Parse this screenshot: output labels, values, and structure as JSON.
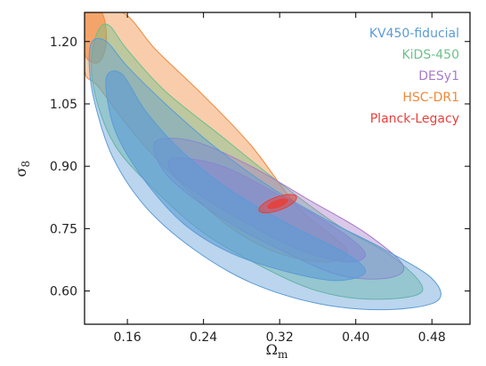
{
  "chart_data": {
    "type": "contour",
    "xlabel": "Ω",
    "xlabel_sub": "m",
    "ylabel": "σ",
    "ylabel_sub": "8",
    "xlim": [
      0.115,
      0.52
    ],
    "ylim": [
      0.52,
      1.27
    ],
    "xticks": [
      0.16,
      0.24,
      0.32,
      0.4,
      0.48
    ],
    "xtick_labels": [
      "0.16",
      "0.24",
      "0.32",
      "0.40",
      "0.48"
    ],
    "yticks": [
      0.6,
      0.75,
      0.9,
      1.05,
      1.2
    ],
    "ytick_labels": [
      "0.60",
      "0.75",
      "0.90",
      "1.05",
      "1.20"
    ],
    "grid": false,
    "legend_position": "top-right",
    "colors": {
      "KV450-fiducial": "#5b9bd5",
      "KiDS-450": "#6cc08b",
      "DESy1": "#a77bca",
      "HSC-DR1": "#f0883a",
      "Planck-Legacy": "#e8403a"
    },
    "series": [
      {
        "name": "HSC-DR1",
        "color": "#f0883a",
        "contours": [
          {
            "level": "95%",
            "points": [
              [
                0.115,
                1.27
              ],
              [
                0.155,
                1.27
              ],
              [
                0.19,
                1.18
              ],
              [
                0.24,
                1.07
              ],
              [
                0.29,
                0.95
              ],
              [
                0.34,
                0.8
              ],
              [
                0.39,
                0.7
              ],
              [
                0.37,
                0.67
              ],
              [
                0.32,
                0.69
              ],
              [
                0.27,
                0.75
              ],
              [
                0.22,
                0.85
              ],
              [
                0.17,
                0.97
              ],
              [
                0.13,
                1.09
              ],
              [
                0.115,
                1.13
              ]
            ]
          },
          {
            "level": "68%",
            "points": [
              [
                0.115,
                1.27
              ],
              [
                0.133,
                1.27
              ],
              [
                0.138,
                1.2
              ],
              [
                0.13,
                1.15
              ],
              [
                0.115,
                1.17
              ]
            ]
          }
        ]
      },
      {
        "name": "KiDS-450",
        "color": "#6cc08b",
        "contours": [
          {
            "level": "95%",
            "points": [
              [
                0.128,
                1.22
              ],
              [
                0.14,
                1.24
              ],
              [
                0.16,
                1.18
              ],
              [
                0.2,
                1.08
              ],
              [
                0.26,
                0.97
              ],
              [
                0.32,
                0.86
              ],
              [
                0.38,
                0.76
              ],
              [
                0.44,
                0.68
              ],
              [
                0.47,
                0.6
              ],
              [
                0.42,
                0.58
              ],
              [
                0.36,
                0.6
              ],
              [
                0.3,
                0.66
              ],
              [
                0.24,
                0.74
              ],
              [
                0.19,
                0.84
              ],
              [
                0.15,
                0.94
              ],
              [
                0.13,
                1.04
              ],
              [
                0.122,
                1.14
              ]
            ]
          }
        ]
      },
      {
        "name": "DESy1",
        "color": "#a77bca",
        "contours": [
          {
            "level": "95%",
            "points": [
              [
                0.19,
                0.96
              ],
              [
                0.23,
                0.96
              ],
              [
                0.29,
                0.9
              ],
              [
                0.35,
                0.82
              ],
              [
                0.41,
                0.74
              ],
              [
                0.45,
                0.66
              ],
              [
                0.43,
                0.63
              ],
              [
                0.38,
                0.64
              ],
              [
                0.32,
                0.7
              ],
              [
                0.27,
                0.76
              ],
              [
                0.22,
                0.84
              ],
              [
                0.195,
                0.9
              ]
            ]
          },
          {
            "level": "68%",
            "points": [
              [
                0.21,
                0.92
              ],
              [
                0.26,
                0.9
              ],
              [
                0.32,
                0.83
              ],
              [
                0.38,
                0.75
              ],
              [
                0.41,
                0.69
              ],
              [
                0.39,
                0.67
              ],
              [
                0.34,
                0.7
              ],
              [
                0.28,
                0.77
              ],
              [
                0.23,
                0.84
              ],
              [
                0.205,
                0.89
              ]
            ]
          }
        ]
      },
      {
        "name": "KV450-fiducial",
        "color": "#5b9bd5",
        "contours": [
          {
            "level": "95%",
            "points": [
              [
                0.123,
                1.2
              ],
              [
                0.138,
                1.2
              ],
              [
                0.16,
                1.14
              ],
              [
                0.2,
                1.05
              ],
              [
                0.25,
                0.95
              ],
              [
                0.31,
                0.85
              ],
              [
                0.37,
                0.77
              ],
              [
                0.43,
                0.7
              ],
              [
                0.48,
                0.63
              ],
              [
                0.485,
                0.575
              ],
              [
                0.43,
                0.555
              ],
              [
                0.36,
                0.57
              ],
              [
                0.29,
                0.62
              ],
              [
                0.23,
                0.7
              ],
              [
                0.18,
                0.8
              ],
              [
                0.145,
                0.92
              ],
              [
                0.126,
                1.05
              ],
              [
                0.12,
                1.14
              ]
            ]
          },
          {
            "level": "68%",
            "points": [
              [
                0.139,
                1.12
              ],
              [
                0.155,
                1.12
              ],
              [
                0.18,
                1.03
              ],
              [
                0.22,
                0.93
              ],
              [
                0.27,
                0.84
              ],
              [
                0.33,
                0.76
              ],
              [
                0.39,
                0.69
              ],
              [
                0.41,
                0.645
              ],
              [
                0.38,
                0.625
              ],
              [
                0.33,
                0.645
              ],
              [
                0.27,
                0.69
              ],
              [
                0.22,
                0.76
              ],
              [
                0.18,
                0.86
              ],
              [
                0.15,
                0.97
              ],
              [
                0.139,
                1.06
              ]
            ]
          }
        ]
      },
      {
        "name": "Planck-Legacy",
        "color": "#e8403a",
        "contours": [
          {
            "level": "95%",
            "ellipse": {
              "cx": 0.318,
              "cy": 0.81,
              "rx": 0.021,
              "ry": 0.016,
              "angle": -20
            }
          },
          {
            "level": "68%",
            "ellipse": {
              "cx": 0.318,
              "cy": 0.81,
              "rx": 0.011,
              "ry": 0.008,
              "angle": -20
            }
          }
        ]
      }
    ],
    "legend": [
      "KV450-fiducial",
      "KiDS-450",
      "DESy1",
      "HSC-DR1",
      "Planck-Legacy"
    ]
  }
}
